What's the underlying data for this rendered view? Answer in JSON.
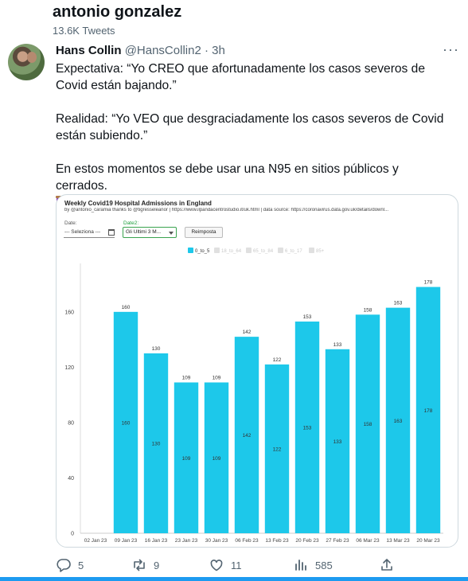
{
  "header": {
    "profile_name": "antonio gonzalez",
    "tweet_count": "13.6K Tweets"
  },
  "tweet": {
    "author_name": "Hans Collin",
    "author_handle": "@HansCollin2",
    "separator": "·",
    "time": "3h",
    "paragraphs": [
      "Expectativa: “Yo CREO que afortunadamente los casos severos de Covid están bajando.”",
      "Realidad: “Yo VEO que desgraciadamente los casos severos de Covid están subiendo.”",
      "En estos momentos se debe usar una N95 en sitios públicos y cerrados."
    ],
    "emoji": "spool-of-thread-emoji"
  },
  "chart_controls": {
    "date_label": "Date:",
    "date_value": "--- Seleziona ---",
    "date2_label": "Date2:",
    "date2_value": "Gli Ultimi 3 M...",
    "reset_label": "Reimposta"
  },
  "chart_data": {
    "type": "bar",
    "title": "Weekly Covid19 Hospital Admissions in England",
    "subtitle": "by @antonio_caramia thanks to @tigresseleanor | https://www.ilpandacentrostudio.it/uk.html | data source: https://coronavirus.data.gov.uk/details/downl...",
    "categories": [
      "02 Jan 23",
      "09 Jan 23",
      "16 Jan 23",
      "23 Jan 23",
      "30 Jan 23",
      "06 Feb 23",
      "13 Feb 23",
      "20 Feb 23",
      "27 Feb 23",
      "06 Mar 23",
      "13 Mar 23",
      "20 Mar 23"
    ],
    "values": [
      null,
      160,
      130,
      109,
      109,
      142,
      122,
      153,
      133,
      158,
      163,
      178
    ],
    "ylim": [
      0,
      195
    ],
    "yticks": [
      0,
      40,
      80,
      120,
      160
    ],
    "grid": false,
    "bar_color": "#1dc8ea",
    "legend": {
      "placement": "top-center",
      "entries": [
        {
          "label": "0_to_5",
          "active": true
        },
        {
          "label": "18_to_64",
          "active": false
        },
        {
          "label": "65_to_84",
          "active": false
        },
        {
          "label": "6_to_17",
          "active": false
        },
        {
          "label": "85+",
          "active": false
        }
      ]
    }
  },
  "actions": {
    "replies": "5",
    "retweets": "9",
    "likes": "11",
    "views": "585"
  },
  "colors": {
    "accent": "#1d9bf0",
    "text_secondary": "#536471"
  }
}
